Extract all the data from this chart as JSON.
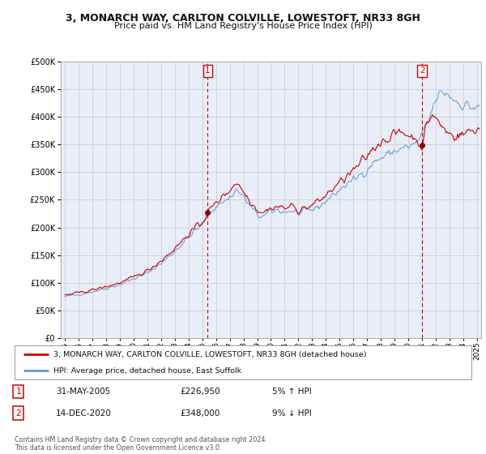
{
  "title": "3, MONARCH WAY, CARLTON COLVILLE, LOWESTOFT, NR33 8GH",
  "subtitle": "Price paid vs. HM Land Registry's House Price Index (HPI)",
  "legend_label_red": "3, MONARCH WAY, CARLTON COLVILLE, LOWESTOFT, NR33 8GH (detached house)",
  "legend_label_blue": "HPI: Average price, detached house, East Suffolk",
  "annotation1_label": "1",
  "annotation1_date": "31-MAY-2005",
  "annotation1_price": "£226,950",
  "annotation1_hpi": "5% ↑ HPI",
  "annotation1_year": 2005.4,
  "annotation1_value": 226950,
  "annotation2_label": "2",
  "annotation2_date": "14-DEC-2020",
  "annotation2_price": "£348,000",
  "annotation2_hpi": "9% ↓ HPI",
  "annotation2_year": 2021.0,
  "annotation2_value": 348000,
  "footer": "Contains HM Land Registry data © Crown copyright and database right 2024.\nThis data is licensed under the Open Government Licence v3.0.",
  "ylim": [
    0,
    500000
  ],
  "yticks": [
    0,
    50000,
    100000,
    150000,
    200000,
    250000,
    300000,
    350000,
    400000,
    450000,
    500000
  ],
  "background_color": "#ffffff",
  "plot_bg_color": "#e8eef8",
  "grid_color": "#c8c8c8",
  "red_color": "#cc0000",
  "blue_color": "#6699cc",
  "marker_color": "#880000",
  "vline_color": "#cc0000",
  "xlim_left": 1994.7,
  "xlim_right": 2025.3
}
